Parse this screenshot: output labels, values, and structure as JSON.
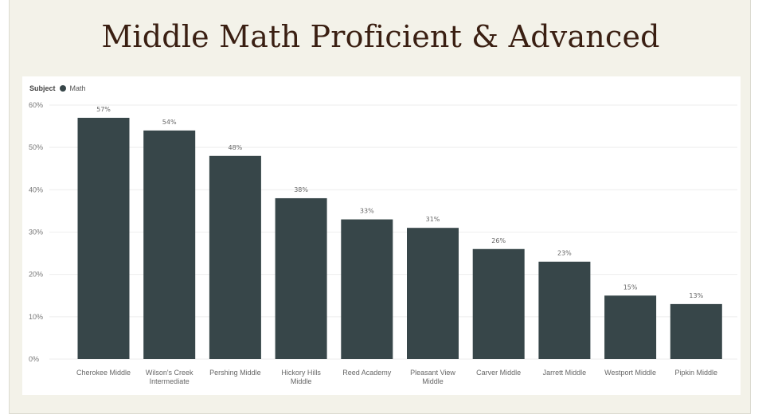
{
  "page": {
    "title": "Middle Math Proficient & Advanced"
  },
  "legend": {
    "label": "Subject",
    "item": "Math",
    "color": "#374649"
  },
  "chart_data": {
    "type": "bar",
    "categories": [
      [
        "Cherokee Middle"
      ],
      [
        "Wilson's Creek",
        "Intermediate"
      ],
      [
        "Pershing Middle"
      ],
      [
        "Hickory Hills",
        "Middle"
      ],
      [
        "Reed Academy"
      ],
      [
        "Pleasant View",
        "Middle"
      ],
      [
        "Carver Middle"
      ],
      [
        "Jarrett Middle"
      ],
      [
        "Westport Middle"
      ],
      [
        "Pipkin Middle"
      ]
    ],
    "series": [
      {
        "name": "Math",
        "values": [
          57,
          54,
          48,
          38,
          33,
          31,
          26,
          23,
          15,
          13
        ],
        "labels": [
          "57%",
          "54%",
          "48%",
          "38%",
          "33%",
          "31%",
          "26%",
          "23%",
          "15%",
          "13%"
        ]
      }
    ],
    "ylim": [
      0,
      60
    ],
    "yticks": [
      "0%",
      "10%",
      "20%",
      "30%",
      "40%",
      "50%",
      "60%"
    ],
    "grid": true,
    "bar_color": "#374649"
  }
}
